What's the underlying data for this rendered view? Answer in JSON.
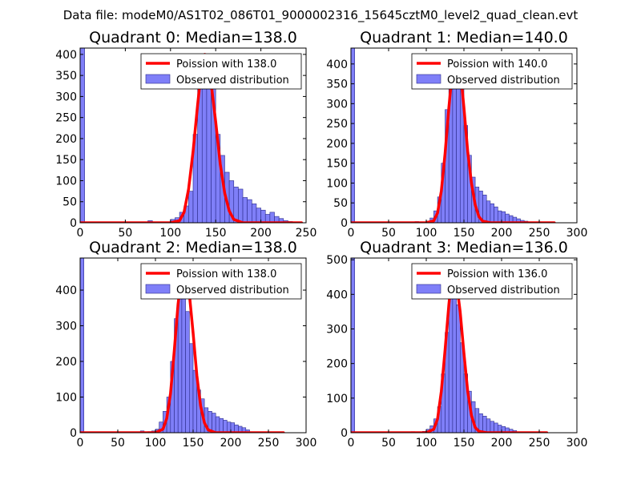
{
  "figure": {
    "suptitle": "Data file: modeM0/AS1T02_086T01_9000002316_15645cztM0_level2_quad_clean.evt"
  },
  "style": {
    "bar_fill": "#7f7ff8",
    "bar_edge": "#2a2a8a",
    "fit_color": "#ff0000",
    "axis_color": "#000000"
  },
  "chart_data": [
    {
      "type": "bar",
      "title": "Quadrant 0: Median=138.0",
      "xlim": [
        0,
        250
      ],
      "ylim": [
        0,
        415
      ],
      "xticks": [
        0,
        50,
        100,
        150,
        200,
        250
      ],
      "yticks": [
        0,
        50,
        100,
        150,
        200,
        250,
        300,
        350,
        400
      ],
      "legend": {
        "position": "top-right",
        "entries": [
          "Poission with 138.0",
          "Observed distribution"
        ]
      },
      "histogram": {
        "name": "Observed distribution",
        "bins": [
          [
            0,
            5,
            415
          ],
          [
            75,
            80,
            5
          ],
          [
            95,
            100,
            2
          ],
          [
            100,
            105,
            8
          ],
          [
            105,
            110,
            12
          ],
          [
            110,
            115,
            25
          ],
          [
            115,
            120,
            40
          ],
          [
            120,
            125,
            75
          ],
          [
            125,
            130,
            210
          ],
          [
            130,
            135,
            350
          ],
          [
            135,
            140,
            400
          ],
          [
            140,
            145,
            395
          ],
          [
            145,
            150,
            320
          ],
          [
            150,
            155,
            210
          ],
          [
            155,
            160,
            160
          ],
          [
            160,
            165,
            120
          ],
          [
            165,
            170,
            100
          ],
          [
            170,
            175,
            85
          ],
          [
            175,
            180,
            80
          ],
          [
            180,
            185,
            60
          ],
          [
            185,
            190,
            55
          ],
          [
            190,
            195,
            45
          ],
          [
            195,
            200,
            35
          ],
          [
            200,
            205,
            30
          ],
          [
            205,
            210,
            20
          ],
          [
            210,
            215,
            25
          ],
          [
            215,
            220,
            15
          ],
          [
            220,
            225,
            10
          ],
          [
            225,
            230,
            5
          ],
          [
            230,
            235,
            3
          ]
        ]
      },
      "fit": {
        "name": "Poission with 138.0",
        "mean": 138.0,
        "peak": 400,
        "x_range": [
          0,
          245
        ],
        "points": [
          [
            0,
            0
          ],
          [
            100,
            0
          ],
          [
            110,
            5
          ],
          [
            115,
            25
          ],
          [
            120,
            80
          ],
          [
            125,
            170
          ],
          [
            130,
            280
          ],
          [
            135,
            380
          ],
          [
            138,
            400
          ],
          [
            141,
            390
          ],
          [
            145,
            330
          ],
          [
            150,
            240
          ],
          [
            155,
            140
          ],
          [
            160,
            70
          ],
          [
            165,
            28
          ],
          [
            170,
            8
          ],
          [
            180,
            0
          ],
          [
            245,
            0
          ]
        ]
      }
    },
    {
      "type": "bar",
      "title": "Quadrant 1: Median=140.0",
      "xlim": [
        0,
        300
      ],
      "ylim": [
        0,
        440
      ],
      "xticks": [
        0,
        50,
        100,
        150,
        200,
        250,
        300
      ],
      "yticks": [
        0,
        50,
        100,
        150,
        200,
        250,
        300,
        350,
        400
      ],
      "legend": {
        "position": "top-right",
        "entries": [
          "Poission with 140.0",
          "Observed distribution"
        ]
      },
      "histogram": {
        "name": "Observed distribution",
        "bins": [
          [
            0,
            5,
            440
          ],
          [
            85,
            90,
            3
          ],
          [
            90,
            95,
            2
          ],
          [
            100,
            105,
            4
          ],
          [
            105,
            110,
            12
          ],
          [
            110,
            115,
            30
          ],
          [
            115,
            120,
            65
          ],
          [
            120,
            125,
            150
          ],
          [
            125,
            130,
            285
          ],
          [
            130,
            135,
            370
          ],
          [
            135,
            140,
            420
          ],
          [
            140,
            145,
            410
          ],
          [
            145,
            150,
            345
          ],
          [
            150,
            155,
            245
          ],
          [
            155,
            160,
            170
          ],
          [
            160,
            165,
            115
          ],
          [
            165,
            170,
            90
          ],
          [
            170,
            175,
            80
          ],
          [
            175,
            180,
            70
          ],
          [
            180,
            185,
            55
          ],
          [
            185,
            190,
            48
          ],
          [
            190,
            195,
            40
          ],
          [
            195,
            200,
            30
          ],
          [
            200,
            205,
            28
          ],
          [
            205,
            210,
            22
          ],
          [
            210,
            215,
            18
          ],
          [
            215,
            220,
            14
          ],
          [
            220,
            225,
            10
          ],
          [
            225,
            230,
            6
          ],
          [
            230,
            235,
            4
          ]
        ]
      },
      "fit": {
        "name": "Poission with 140.0",
        "mean": 140.0,
        "peak": 420,
        "x_range": [
          0,
          270
        ],
        "points": [
          [
            0,
            0
          ],
          [
            100,
            0
          ],
          [
            110,
            5
          ],
          [
            115,
            25
          ],
          [
            120,
            80
          ],
          [
            125,
            175
          ],
          [
            130,
            290
          ],
          [
            135,
            390
          ],
          [
            140,
            420
          ],
          [
            143,
            410
          ],
          [
            147,
            350
          ],
          [
            150,
            290
          ],
          [
            155,
            180
          ],
          [
            160,
            100
          ],
          [
            165,
            45
          ],
          [
            170,
            15
          ],
          [
            175,
            4
          ],
          [
            185,
            0
          ],
          [
            270,
            0
          ]
        ]
      }
    },
    {
      "type": "bar",
      "title": "Quadrant 2: Median=138.0",
      "xlim": [
        0,
        300
      ],
      "ylim": [
        0,
        490
      ],
      "xticks": [
        0,
        50,
        100,
        150,
        200,
        250,
        300
      ],
      "yticks": [
        0,
        100,
        200,
        300,
        400
      ],
      "legend": {
        "position": "top-right",
        "entries": [
          "Poission with 138.0",
          "Observed distribution"
        ]
      },
      "histogram": {
        "name": "Observed distribution",
        "bins": [
          [
            0,
            5,
            490
          ],
          [
            80,
            85,
            5
          ],
          [
            90,
            95,
            3
          ],
          [
            95,
            100,
            5
          ],
          [
            100,
            105,
            10
          ],
          [
            105,
            110,
            30
          ],
          [
            110,
            115,
            60
          ],
          [
            115,
            120,
            100
          ],
          [
            120,
            125,
            200
          ],
          [
            125,
            130,
            320
          ],
          [
            130,
            135,
            440
          ],
          [
            135,
            140,
            420
          ],
          [
            140,
            145,
            340
          ],
          [
            145,
            150,
            250
          ],
          [
            150,
            155,
            175
          ],
          [
            155,
            160,
            120
          ],
          [
            160,
            165,
            95
          ],
          [
            165,
            170,
            70
          ],
          [
            170,
            175,
            60
          ],
          [
            175,
            180,
            55
          ],
          [
            180,
            185,
            45
          ],
          [
            185,
            190,
            40
          ],
          [
            190,
            195,
            35
          ],
          [
            195,
            200,
            30
          ],
          [
            200,
            205,
            28
          ],
          [
            205,
            210,
            22
          ],
          [
            210,
            215,
            18
          ],
          [
            215,
            220,
            14
          ],
          [
            220,
            225,
            8
          ]
        ]
      },
      "fit": {
        "name": "Poission with 138.0",
        "mean": 138.0,
        "peak": 470,
        "x_range": [
          0,
          270
        ],
        "points": [
          [
            0,
            0
          ],
          [
            100,
            0
          ],
          [
            110,
            10
          ],
          [
            115,
            40
          ],
          [
            120,
            110
          ],
          [
            125,
            230
          ],
          [
            130,
            360
          ],
          [
            135,
            450
          ],
          [
            138,
            470
          ],
          [
            141,
            455
          ],
          [
            145,
            390
          ],
          [
            150,
            280
          ],
          [
            155,
            160
          ],
          [
            160,
            75
          ],
          [
            165,
            28
          ],
          [
            170,
            8
          ],
          [
            180,
            0
          ],
          [
            270,
            0
          ]
        ]
      }
    },
    {
      "type": "bar",
      "title": "Quadrant 3: Median=136.0",
      "xlim": [
        0,
        300
      ],
      "ylim": [
        0,
        505
      ],
      "xticks": [
        0,
        50,
        100,
        150,
        200,
        250,
        300
      ],
      "yticks": [
        0,
        100,
        200,
        300,
        400,
        500
      ],
      "legend": {
        "position": "top-right",
        "entries": [
          "Poission with 136.0",
          "Observed distribution"
        ]
      },
      "histogram": {
        "name": "Observed distribution",
        "bins": [
          [
            0,
            5,
            505
          ],
          [
            80,
            85,
            3
          ],
          [
            95,
            100,
            4
          ],
          [
            100,
            105,
            10
          ],
          [
            105,
            110,
            20
          ],
          [
            110,
            115,
            40
          ],
          [
            115,
            120,
            75
          ],
          [
            120,
            125,
            170
          ],
          [
            125,
            130,
            290
          ],
          [
            130,
            135,
            420
          ],
          [
            135,
            140,
            460
          ],
          [
            140,
            145,
            370
          ],
          [
            145,
            150,
            260
          ],
          [
            150,
            155,
            170
          ],
          [
            155,
            160,
            120
          ],
          [
            160,
            165,
            90
          ],
          [
            165,
            170,
            70
          ],
          [
            170,
            175,
            55
          ],
          [
            175,
            180,
            48
          ],
          [
            180,
            185,
            40
          ],
          [
            185,
            190,
            33
          ],
          [
            190,
            195,
            28
          ],
          [
            195,
            200,
            22
          ],
          [
            200,
            205,
            18
          ],
          [
            205,
            210,
            14
          ],
          [
            210,
            215,
            10
          ],
          [
            215,
            220,
            6
          ]
        ]
      },
      "fit": {
        "name": "Poission with 136.0",
        "mean": 136.0,
        "peak": 470,
        "x_range": [
          0,
          260
        ],
        "points": [
          [
            0,
            0
          ],
          [
            100,
            0
          ],
          [
            110,
            10
          ],
          [
            115,
            40
          ],
          [
            120,
            120
          ],
          [
            125,
            240
          ],
          [
            130,
            370
          ],
          [
            134,
            455
          ],
          [
            136,
            470
          ],
          [
            139,
            455
          ],
          [
            145,
            350
          ],
          [
            150,
            230
          ],
          [
            155,
            120
          ],
          [
            160,
            50
          ],
          [
            165,
            15
          ],
          [
            170,
            4
          ],
          [
            180,
            0
          ],
          [
            260,
            0
          ]
        ]
      }
    }
  ]
}
